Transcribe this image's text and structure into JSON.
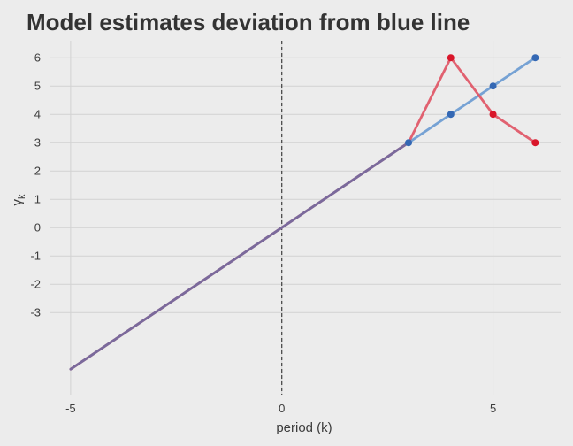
{
  "chart_data": {
    "type": "line",
    "title": "Model estimates deviation from blue line",
    "xlabel": "period (k)",
    "ylabel": "γk",
    "xlim": [
      -5.5,
      6.6
    ],
    "ylim": [
      -5.9,
      6.6
    ],
    "x_ticks": [
      -5,
      0,
      5
    ],
    "y_ticks": [
      -3,
      -2,
      -1,
      0,
      1,
      2,
      3,
      4,
      5,
      6
    ],
    "vline": {
      "x": 0,
      "style": "dashed"
    },
    "grid": true,
    "overlap_color": "#7a6a9c",
    "series": [
      {
        "color": "#6b9bd1",
        "marker_color": "#3468b4",
        "line": [
          [
            -5,
            -5
          ],
          [
            3,
            3
          ],
          [
            4,
            4
          ],
          [
            5,
            5
          ],
          [
            6,
            6
          ]
        ],
        "points": [
          [
            3,
            3
          ],
          [
            4,
            4
          ],
          [
            5,
            5
          ],
          [
            6,
            6
          ]
        ]
      },
      {
        "color": "#e05565",
        "marker_color": "#d9162a",
        "line": [
          [
            -5,
            -5
          ],
          [
            3,
            3
          ],
          [
            4,
            6
          ],
          [
            5,
            4
          ],
          [
            6,
            3
          ]
        ],
        "points": [
          [
            4,
            6
          ],
          [
            5,
            4
          ],
          [
            6,
            3
          ]
        ]
      }
    ]
  }
}
